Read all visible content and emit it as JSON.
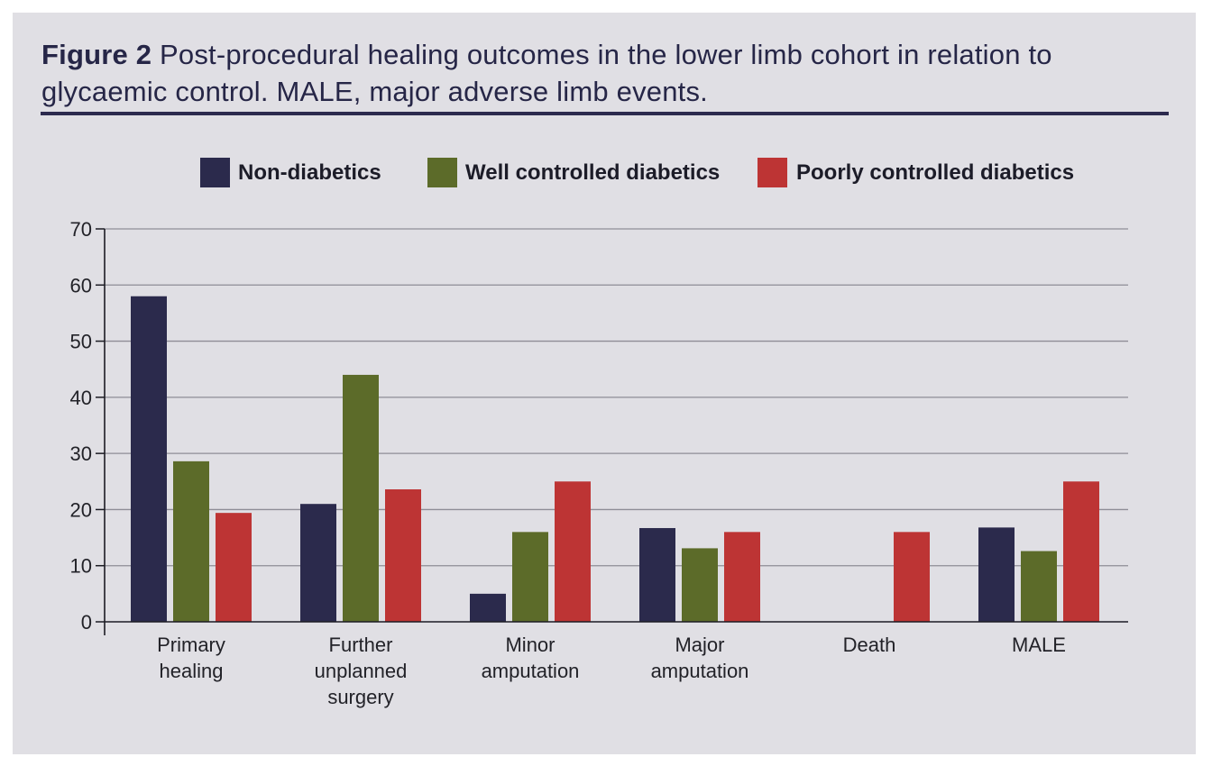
{
  "figure": {
    "label": "Figure 2",
    "caption": "Post-procedural healing outcomes in the lower limb cohort in relation to glycaemic control. MALE, major adverse limb events."
  },
  "colors": {
    "background": "#e0dfe4",
    "rule": "#2c2a4e",
    "non_diabetics": "#2b2a4c",
    "well_controlled": "#5c6b29",
    "poorly_controlled": "#bd3434"
  },
  "chart_data": {
    "type": "bar",
    "title": "",
    "xlabel": "",
    "ylabel": "",
    "ylim": [
      0,
      70
    ],
    "yticks": [
      0,
      10,
      20,
      30,
      40,
      50,
      60,
      70
    ],
    "grid": true,
    "legend_position": "top",
    "categories": [
      [
        "Primary",
        "healing"
      ],
      [
        "Further",
        "unplanned",
        "surgery"
      ],
      [
        "Minor",
        "amputation"
      ],
      [
        "Major",
        "amputation"
      ],
      [
        "Death"
      ],
      [
        "MALE"
      ]
    ],
    "series": [
      {
        "name": "Non-diabetics",
        "color": "#2b2a4c",
        "values": [
          58,
          21,
          5,
          16.7,
          0,
          16.8
        ]
      },
      {
        "name": "Well controlled diabetics",
        "color": "#5c6b29",
        "values": [
          28.6,
          44,
          16,
          13.1,
          0,
          12.6
        ]
      },
      {
        "name": "Poorly controlled diabetics",
        "color": "#bd3434",
        "values": [
          19.4,
          23.6,
          25,
          16,
          16,
          25
        ]
      }
    ]
  }
}
